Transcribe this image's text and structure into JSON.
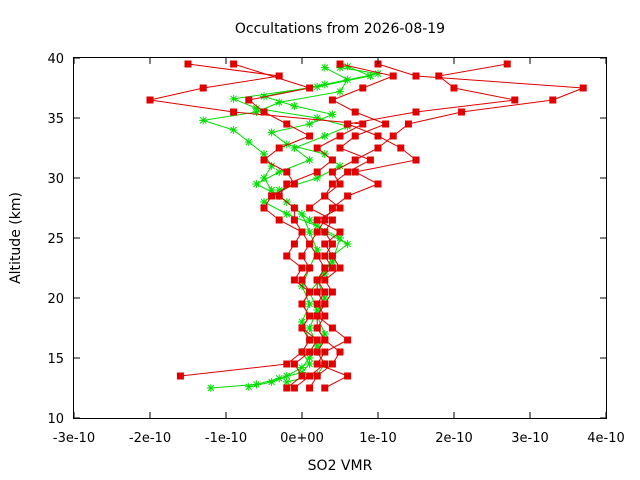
{
  "chart_data": {
    "type": "scatter",
    "title": "Occultations from 2026-08-19",
    "xlabel": "SO2 VMR",
    "ylabel": "Altitude (km)",
    "xlim": [
      -3e-10,
      4e-10
    ],
    "ylim": [
      10,
      40
    ],
    "x_ticks": [
      -3e-10,
      -2e-10,
      -1e-10,
      0,
      1e-10,
      2e-10,
      3e-10,
      4e-10
    ],
    "x_tick_labels": [
      "-3e-10",
      "-2e-10",
      "-1e-10",
      "0e+00",
      "1e-10",
      "2e-10",
      "3e-10",
      "4e-10"
    ],
    "y_ticks": [
      10,
      15,
      20,
      25,
      30,
      35,
      40
    ],
    "y_tick_labels": [
      "10",
      "15",
      "20",
      "25",
      "30",
      "35",
      "40"
    ],
    "grid": false,
    "legend": "none",
    "series": [
      {
        "color": "#00dd00",
        "marker": "plus",
        "profiles": [
          [
            [
              -1.2e-10,
              12.5
            ],
            [
              -6e-11,
              12.8
            ],
            [
              -3e-11,
              13.3
            ],
            [
              0.0,
              13.8
            ],
            [
              1e-11,
              14.5
            ],
            [
              0.0,
              15.5
            ],
            [
              1e-11,
              16.5
            ],
            [
              0.0,
              18.0
            ],
            [
              1e-11,
              19.5
            ],
            [
              0.0,
              21.0
            ],
            [
              1e-11,
              22.5
            ],
            [
              2e-11,
              24.0
            ],
            [
              1e-11,
              25.5
            ],
            [
              0.0,
              27.0
            ],
            [
              -2e-11,
              28.0
            ],
            [
              -4e-11,
              29.0
            ],
            [
              -5e-11,
              30.0
            ],
            [
              -4e-11,
              31.0
            ],
            [
              -5e-11,
              32.0
            ],
            [
              -7e-11,
              33.0
            ],
            [
              -9e-11,
              34.0
            ],
            [
              -1.3e-10,
              34.8
            ],
            [
              -6e-11,
              35.5
            ],
            [
              -3e-11,
              36.3
            ],
            [
              5e-11,
              37.2
            ],
            [
              6e-11,
              38.2
            ],
            [
              3e-11,
              39.2
            ]
          ],
          [
            [
              -7e-11,
              12.6
            ],
            [
              -4e-11,
              13.0
            ],
            [
              -2e-11,
              13.5
            ],
            [
              0.0,
              14.2
            ],
            [
              1e-11,
              15.0
            ],
            [
              2e-11,
              16.0
            ],
            [
              1e-11,
              17.5
            ],
            [
              2e-11,
              19.0
            ],
            [
              1e-11,
              20.5
            ],
            [
              3e-11,
              22.0
            ],
            [
              4e-11,
              23.5
            ],
            [
              6e-11,
              24.5
            ],
            [
              3e-11,
              25.5
            ],
            [
              1e-11,
              26.5
            ],
            [
              -1e-11,
              27.5
            ],
            [
              -3e-11,
              28.5
            ],
            [
              -6e-11,
              29.5
            ],
            [
              -3e-11,
              30.5
            ],
            [
              1e-11,
              31.5
            ],
            [
              -1e-11,
              32.5
            ],
            [
              3e-11,
              33.5
            ],
            [
              6e-11,
              34.3
            ],
            [
              2e-11,
              35.0
            ],
            [
              -6e-11,
              35.8
            ],
            [
              -9e-11,
              36.6
            ],
            [
              2e-11,
              37.6
            ],
            [
              9e-11,
              38.5
            ],
            [
              6e-11,
              39.3
            ]
          ],
          [
            [
              -2e-11,
              13.0
            ],
            [
              2e-11,
              13.6
            ],
            [
              3e-11,
              14.5
            ],
            [
              2e-11,
              15.5
            ],
            [
              3e-11,
              17.0
            ],
            [
              2e-11,
              18.5
            ],
            [
              3e-11,
              20.0
            ],
            [
              2e-11,
              21.5
            ],
            [
              4e-11,
              23.0
            ],
            [
              5e-11,
              25.0
            ],
            [
              2e-11,
              26.0
            ],
            [
              -2e-11,
              27.0
            ],
            [
              -5e-11,
              28.0
            ],
            [
              -3e-11,
              29.0
            ],
            [
              2e-11,
              30.0
            ],
            [
              5e-11,
              31.0
            ],
            [
              3e-11,
              32.0
            ],
            [
              -2e-11,
              32.8
            ],
            [
              -4e-11,
              33.8
            ],
            [
              1e-11,
              34.5
            ],
            [
              4e-11,
              35.3
            ],
            [
              -1e-11,
              36.0
            ],
            [
              -5e-11,
              36.8
            ],
            [
              3e-11,
              37.8
            ],
            [
              1e-10,
              38.7
            ],
            [
              5e-11,
              39.2
            ]
          ]
        ]
      },
      {
        "color": "#e00000",
        "marker": "square",
        "profiles": [
          [
            [
              -1.6e-10,
              13.5
            ],
            [
              -2e-11,
              14.5
            ],
            [
              0.0,
              15.5
            ],
            [
              1e-11,
              16.5
            ],
            [
              0.0,
              17.5
            ],
            [
              1e-11,
              18.5
            ],
            [
              0.0,
              19.5
            ],
            [
              1e-11,
              20.5
            ],
            [
              0.0,
              21.5
            ],
            [
              1e-11,
              22.5
            ],
            [
              0.0,
              23.5
            ],
            [
              1e-11,
              24.5
            ],
            [
              0.0,
              25.5
            ],
            [
              -1e-11,
              26.5
            ],
            [
              -1e-11,
              27.5
            ],
            [
              -3e-11,
              28.5
            ],
            [
              -2e-11,
              29.5
            ],
            [
              2e-11,
              30.5
            ],
            [
              4e-11,
              31.5
            ],
            [
              2e-11,
              32.5
            ],
            [
              5e-11,
              33.5
            ],
            [
              8e-11,
              34.5
            ],
            [
              -9e-11,
              35.5
            ],
            [
              -2e-10,
              36.5
            ],
            [
              -1.3e-10,
              37.5
            ],
            [
              -3e-11,
              38.5
            ],
            [
              -1.5e-10,
              39.5
            ]
          ],
          [
            [
              -1e-11,
              12.5
            ],
            [
              1e-11,
              13.5
            ],
            [
              3e-11,
              14.5
            ],
            [
              2e-11,
              15.5
            ],
            [
              3e-11,
              16.5
            ],
            [
              2e-11,
              17.5
            ],
            [
              3e-11,
              18.5
            ],
            [
              2e-11,
              19.5
            ],
            [
              3e-11,
              20.5
            ],
            [
              2e-11,
              21.5
            ],
            [
              4e-11,
              22.5
            ],
            [
              3e-11,
              23.5
            ],
            [
              4e-11,
              24.5
            ],
            [
              3e-11,
              25.5
            ],
            [
              4e-11,
              26.5
            ],
            [
              1e-11,
              27.5
            ],
            [
              3e-11,
              28.5
            ],
            [
              5e-11,
              29.5
            ],
            [
              4e-11,
              30.5
            ],
            [
              7e-11,
              31.5
            ],
            [
              1e-10,
              32.5
            ],
            [
              1.2e-10,
              33.5
            ],
            [
              1.4e-10,
              34.5
            ],
            [
              2.1e-10,
              35.5
            ],
            [
              3.3e-10,
              36.5
            ],
            [
              3.7e-10,
              37.5
            ],
            [
              1.5e-10,
              38.5
            ],
            [
              1e-10,
              39.5
            ]
          ],
          [
            [
              1e-11,
              12.5
            ],
            [
              2e-11,
              13.5
            ],
            [
              4e-11,
              14.5
            ],
            [
              5e-11,
              15.5
            ],
            [
              3e-11,
              16.5
            ],
            [
              2e-11,
              17.5
            ],
            [
              2e-11,
              18.5
            ],
            [
              3e-11,
              19.5
            ],
            [
              2e-11,
              20.5
            ],
            [
              2e-11,
              21.5
            ],
            [
              3e-11,
              22.5
            ],
            [
              2e-11,
              23.5
            ],
            [
              1e-11,
              24.5
            ],
            [
              2e-11,
              25.5
            ],
            [
              3e-11,
              26.5
            ],
            [
              4e-11,
              27.5
            ],
            [
              6e-11,
              28.5
            ],
            [
              1e-10,
              29.5
            ],
            [
              7e-11,
              30.5
            ],
            [
              1.5e-10,
              31.5
            ],
            [
              1.3e-10,
              32.5
            ],
            [
              1e-10,
              33.5
            ],
            [
              6e-11,
              34.5
            ],
            [
              1.5e-10,
              35.5
            ],
            [
              2.8e-10,
              36.5
            ],
            [
              2e-10,
              37.5
            ],
            [
              1.8e-10,
              38.5
            ],
            [
              2.7e-10,
              39.5
            ]
          ],
          [
            [
              -2e-11,
              12.5
            ],
            [
              0.0,
              13.5
            ],
            [
              -1e-11,
              14.5
            ],
            [
              1e-11,
              15.5
            ],
            [
              2e-11,
              16.5
            ],
            [
              0.0,
              17.5
            ],
            [
              1e-11,
              18.5
            ],
            [
              0.0,
              19.5
            ],
            [
              1e-11,
              20.5
            ],
            [
              -1e-11,
              21.5
            ],
            [
              0.0,
              22.5
            ],
            [
              -2e-11,
              23.5
            ],
            [
              -1e-11,
              24.5
            ],
            [
              0.0,
              25.5
            ],
            [
              -3e-11,
              26.5
            ],
            [
              -5e-11,
              27.5
            ],
            [
              -4e-11,
              28.5
            ],
            [
              -1e-11,
              29.5
            ],
            [
              -2e-11,
              30.5
            ],
            [
              -5e-11,
              31.5
            ],
            [
              -3e-11,
              32.5
            ],
            [
              1e-11,
              33.5
            ],
            [
              -2e-11,
              34.5
            ],
            [
              -5e-11,
              35.5
            ],
            [
              -7e-11,
              36.5
            ],
            [
              1e-11,
              37.5
            ],
            [
              -9e-11,
              39.5
            ]
          ],
          [
            [
              3e-11,
              12.5
            ],
            [
              6e-11,
              13.5
            ],
            [
              2e-11,
              14.5
            ],
            [
              3e-11,
              15.5
            ],
            [
              6e-11,
              16.5
            ],
            [
              4e-11,
              17.5
            ],
            [
              2e-11,
              18.5
            ],
            [
              3e-11,
              19.5
            ],
            [
              4e-11,
              20.5
            ],
            [
              3e-11,
              21.5
            ],
            [
              5e-11,
              22.5
            ],
            [
              4e-11,
              23.5
            ],
            [
              3e-11,
              24.5
            ],
            [
              5e-11,
              25.5
            ],
            [
              2e-11,
              26.5
            ],
            [
              5e-11,
              27.5
            ],
            [
              3e-11,
              28.5
            ],
            [
              4e-11,
              29.5
            ],
            [
              6e-11,
              30.5
            ],
            [
              9e-11,
              31.5
            ],
            [
              5e-11,
              32.5
            ],
            [
              7e-11,
              33.5
            ],
            [
              1.1e-10,
              34.5
            ],
            [
              7e-11,
              35.5
            ],
            [
              4e-11,
              36.5
            ],
            [
              8e-11,
              37.5
            ],
            [
              1.2e-10,
              38.5
            ],
            [
              5e-11,
              39.5
            ]
          ]
        ]
      }
    ]
  }
}
